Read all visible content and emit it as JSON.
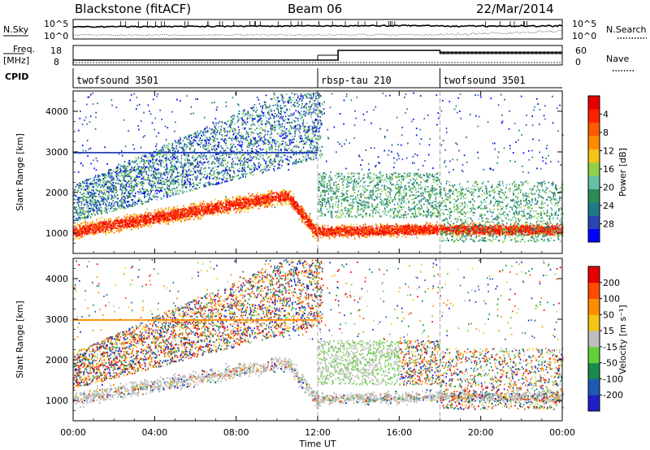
{
  "header": {
    "station": "Blackstone (fitACF)",
    "beam": "Beam 06",
    "date": "22/Mar/2014"
  },
  "top_strips": {
    "nsky": {
      "label": "N.Sky",
      "right_label": "N.Search",
      "ticks_left": [
        "10^5",
        "10^0"
      ],
      "ticks_right": [
        "10^5",
        "10^0"
      ]
    },
    "freq": {
      "label_line1": "Freq.",
      "label_line2": "[MHz]",
      "ticks_left": [
        "18",
        "8"
      ],
      "right_label": "Nave",
      "ticks_right": [
        "60",
        "0"
      ]
    },
    "cpid": {
      "label": "CPID",
      "modes": [
        {
          "name": "twofsound 3501",
          "start_hour": 0,
          "end_hour": 12
        },
        {
          "name": "rbsp-tau 210",
          "start_hour": 12,
          "end_hour": 18
        },
        {
          "name": "twofsound 3501",
          "start_hour": 18,
          "end_hour": 24
        }
      ]
    }
  },
  "x_axis": {
    "label": "Time UT",
    "ticks": [
      {
        "hour": 0,
        "label": "00:00"
      },
      {
        "hour": 4,
        "label": "04:00"
      },
      {
        "hour": 8,
        "label": "08:00"
      },
      {
        "hour": 12,
        "label": "12:00"
      },
      {
        "hour": 16,
        "label": "16:00"
      },
      {
        "hour": 20,
        "label": "20:00"
      },
      {
        "hour": 24,
        "label": "00:00"
      }
    ]
  },
  "chart_data": [
    {
      "type": "heatmap",
      "name": "power",
      "ylabel": "Slant Range [km]",
      "xlim": [
        0,
        24
      ],
      "ylim": [
        500,
        4500
      ],
      "yticks": [
        1000,
        2000,
        3000,
        4000
      ],
      "colorbar": {
        "label": "Power [dB]",
        "ticks": [
          "4",
          "8",
          "12",
          "16",
          "20",
          "24",
          "28"
        ],
        "colors": [
          "#0000ff",
          "#2847b4",
          "#1f7a8a",
          "#2e8b57",
          "#66c0a8",
          "#8fd24a",
          "#f5c418",
          "#ff8c00",
          "#ff5a00",
          "#ff2200",
          "#e60000"
        ]
      }
    },
    {
      "type": "heatmap",
      "name": "velocity",
      "ylabel": "Slant Range [km]",
      "xlim": [
        0,
        24
      ],
      "ylim": [
        500,
        4500
      ],
      "yticks": [
        1000,
        2000,
        3000,
        4000
      ],
      "colorbar": {
        "label": "Velocity [m s⁻¹]",
        "ticks": [
          "200",
          "100",
          "50",
          "15",
          "-15",
          "-50",
          "-100",
          "-200"
        ],
        "colors": [
          "#1f1fc8",
          "#1e5ab4",
          "#1a8a4a",
          "#63d13a",
          "#bebebe",
          "#f5c418",
          "#ff8c00",
          "#ff4a00",
          "#e60000"
        ]
      }
    }
  ]
}
